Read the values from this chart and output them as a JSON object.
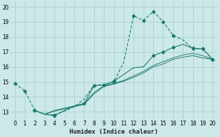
{
  "xlabel": "Humidex (Indice chaleur)",
  "bg_color": "#cce8e8",
  "grid_color": "#aacfcf",
  "line_color": "#1a7a6e",
  "xlim": [
    -0.5,
    20.5
  ],
  "ylim": [
    12.5,
    20.3
  ],
  "yticks": [
    13,
    14,
    15,
    16,
    17,
    18,
    19,
    20
  ],
  "xticks": [
    0,
    1,
    2,
    3,
    4,
    5,
    6,
    7,
    8,
    9,
    10,
    11,
    12,
    13,
    14,
    15,
    16,
    17,
    18,
    19,
    20
  ],
  "line1_x": [
    0,
    1,
    2,
    3,
    4,
    5,
    6,
    7,
    8,
    9,
    10,
    11,
    12,
    13,
    14,
    15,
    16,
    17,
    18,
    19,
    20
  ],
  "line1_y": [
    14.9,
    14.4,
    13.1,
    12.85,
    12.8,
    13.05,
    13.35,
    13.85,
    14.8,
    14.8,
    15.0,
    16.3,
    19.4,
    19.1,
    19.7,
    19.0,
    18.1,
    17.8,
    17.2,
    17.2,
    16.5
  ],
  "line2_x": [
    2,
    3,
    4,
    5,
    6,
    7,
    8,
    9,
    10,
    11,
    12,
    13,
    14,
    15,
    16,
    17,
    18,
    19,
    20
  ],
  "line2_y": [
    13.1,
    12.85,
    12.75,
    13.1,
    13.4,
    13.55,
    14.75,
    14.8,
    15.05,
    15.5,
    15.95,
    16.0,
    16.75,
    17.0,
    17.3,
    17.5,
    17.25,
    17.2,
    16.5
  ],
  "line3_x": [
    2,
    3,
    4,
    5,
    6,
    7,
    8,
    9,
    10,
    11,
    12,
    13,
    14,
    15,
    16,
    17,
    18,
    19,
    20
  ],
  "line3_y": [
    13.1,
    12.85,
    13.1,
    13.25,
    13.4,
    13.55,
    14.3,
    14.75,
    14.9,
    15.1,
    15.4,
    15.7,
    16.1,
    16.35,
    16.6,
    16.8,
    16.9,
    16.75,
    16.5
  ],
  "line4_x": [
    2,
    3,
    4,
    5,
    6,
    7,
    8,
    9,
    10,
    11,
    12,
    13,
    14,
    15,
    16,
    17,
    18,
    19,
    20
  ],
  "line4_y": [
    13.1,
    12.85,
    13.05,
    13.2,
    13.35,
    13.5,
    14.2,
    14.7,
    14.85,
    15.05,
    15.3,
    15.6,
    16.0,
    16.2,
    16.5,
    16.65,
    16.75,
    16.6,
    16.5
  ],
  "marker1_x": [
    0,
    1,
    2,
    4,
    9,
    10,
    12,
    13,
    14,
    15,
    16,
    18,
    19,
    20
  ],
  "marker1_y": [
    14.9,
    14.4,
    13.1,
    12.8,
    14.8,
    15.0,
    19.4,
    19.1,
    19.7,
    19.0,
    18.1,
    17.2,
    17.2,
    16.5
  ],
  "marker2_x": [
    2,
    4,
    7,
    8,
    9,
    10,
    14,
    15,
    16,
    18,
    19,
    20
  ],
  "marker2_y": [
    13.1,
    12.75,
    13.55,
    14.75,
    14.8,
    15.05,
    16.75,
    17.0,
    17.3,
    17.25,
    17.2,
    16.5
  ]
}
